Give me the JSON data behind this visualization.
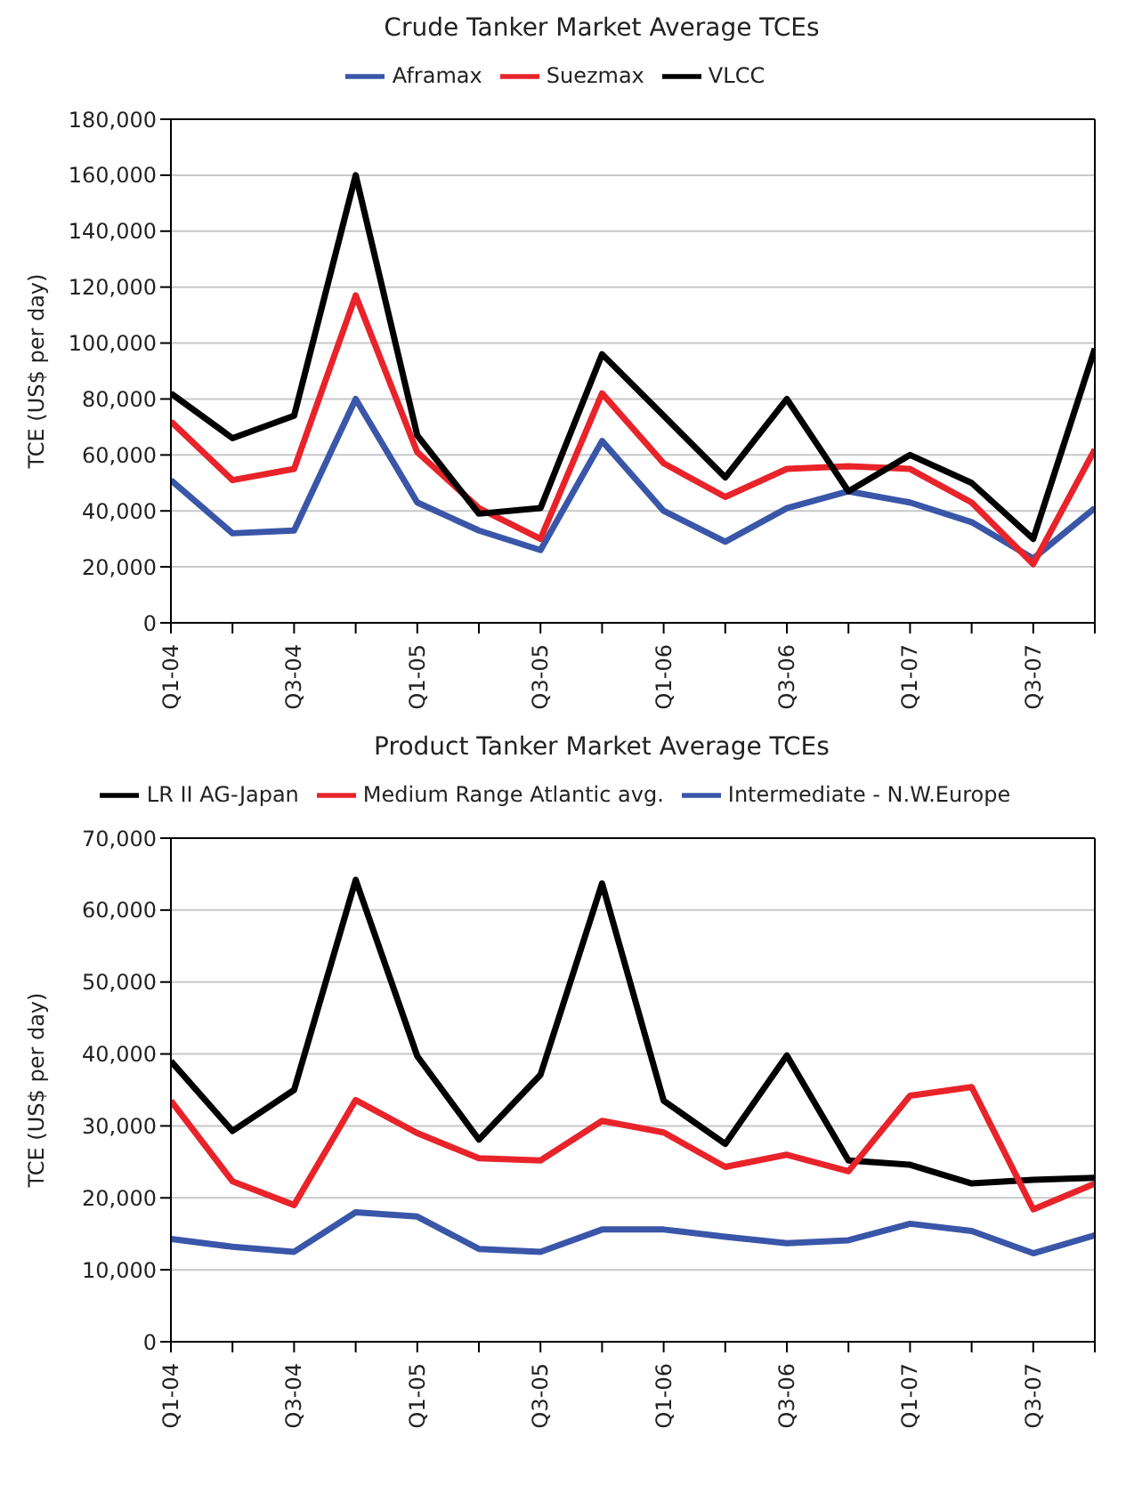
{
  "chart_data": [
    {
      "type": "line",
      "title": "Crude Tanker Market Average TCEs",
      "ylabel": "TCE (US$ per day)",
      "categories": [
        "Q1-04",
        null,
        "Q3-04",
        null,
        "Q1-05",
        null,
        "Q3-05",
        null,
        "Q1-06",
        null,
        "Q3-06",
        null,
        "Q1-07",
        null,
        "Q3-07",
        null
      ],
      "series": [
        {
          "name": "Aframax",
          "color": "#3a56a8",
          "values": [
            51000,
            32000,
            33000,
            80000,
            43000,
            33000,
            26000,
            65000,
            40000,
            29000,
            41000,
            47000,
            43000,
            36000,
            23000,
            41000
          ]
        },
        {
          "name": "Suezmax",
          "color": "#e8232a",
          "values": [
            72000,
            51000,
            55000,
            117000,
            61000,
            41000,
            30000,
            82000,
            57000,
            45000,
            55000,
            56000,
            55000,
            43000,
            21000,
            62000
          ]
        },
        {
          "name": "VLCC",
          "color": "#000000",
          "values": [
            82000,
            66000,
            74000,
            160000,
            67000,
            39000,
            41000,
            96000,
            74000,
            52000,
            80000,
            47000,
            60000,
            50000,
            30000,
            98000
          ]
        }
      ],
      "ylim": [
        0,
        180000
      ],
      "yticks": [
        {
          "value": 0,
          "label": "0"
        },
        {
          "value": 20000,
          "label": "20,000"
        },
        {
          "value": 40000,
          "label": "40,000"
        },
        {
          "value": 60000,
          "label": "60,000"
        },
        {
          "value": 80000,
          "label": "80,000"
        },
        {
          "value": 100000,
          "label": "100,000"
        },
        {
          "value": 120000,
          "label": "120,000"
        },
        {
          "value": 140000,
          "label": "140,000"
        },
        {
          "value": 160000,
          "label": "160,000"
        },
        {
          "value": 180000,
          "label": "180,000"
        }
      ],
      "grid": "y",
      "legend": "top",
      "marker": "none",
      "line_style": "solid"
    },
    {
      "type": "line",
      "title": "Product Tanker Market Average TCEs",
      "ylabel": "TCE (US$ per day)",
      "categories": [
        "Q1-04",
        null,
        "Q3-04",
        null,
        "Q1-05",
        null,
        "Q3-05",
        null,
        "Q1-06",
        null,
        "Q3-06",
        null,
        "Q1-07",
        null,
        "Q3-07",
        null
      ],
      "series": [
        {
          "name": "LR II AG-Japan",
          "color": "#000000",
          "values": [
            39000,
            29300,
            35000,
            64200,
            39700,
            28100,
            37100,
            63700,
            33500,
            27500,
            39800,
            25200,
            24600,
            22000,
            22500,
            22800
          ]
        },
        {
          "name": "Medium Range Atlantic avg.",
          "color": "#e8232a",
          "values": [
            33500,
            22300,
            19000,
            33600,
            29000,
            25500,
            25200,
            30700,
            29100,
            24300,
            26000,
            23700,
            34200,
            35400,
            18400,
            22000
          ]
        },
        {
          "name": "Intermediate - N.W.Europe",
          "color": "#3a56a8",
          "values": [
            14300,
            13200,
            12500,
            18000,
            17400,
            12900,
            12500,
            15600,
            15600,
            14600,
            13700,
            14100,
            16400,
            15400,
            12300,
            14800
          ]
        }
      ],
      "ylim": [
        0,
        70000
      ],
      "yticks": [
        {
          "value": 0,
          "label": "0"
        },
        {
          "value": 10000,
          "label": "10,000"
        },
        {
          "value": 20000,
          "label": "20,000"
        },
        {
          "value": 30000,
          "label": "30,000"
        },
        {
          "value": 40000,
          "label": "40,000"
        },
        {
          "value": 50000,
          "label": "50,000"
        },
        {
          "value": 60000,
          "label": "60,000"
        },
        {
          "value": 70000,
          "label": "70,000"
        }
      ],
      "grid": "y",
      "legend": "top",
      "marker": "none",
      "line_style": "solid"
    }
  ]
}
